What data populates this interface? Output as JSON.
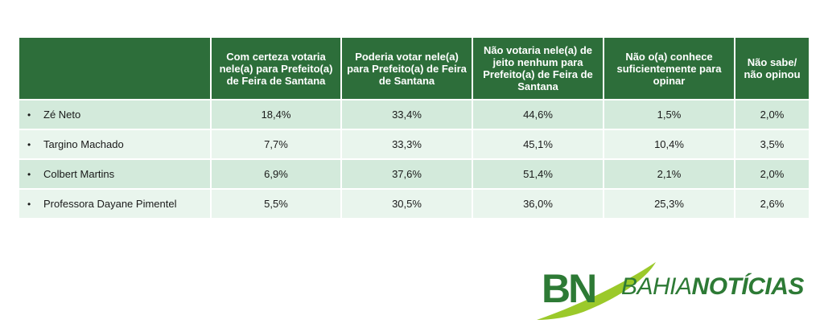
{
  "table": {
    "headers": [
      "",
      "Com certeza votaria nele(a) para Prefeito(a) de Feira de Santana",
      "Poderia votar nele(a) para Prefeito(a) de Feira de Santana",
      "Não votaria nele(a) de jeito nenhum para Prefeito(a) de Feira de Santana",
      "Não o(a) conhece suficientemente para opinar",
      "Não sabe/ não opinou"
    ],
    "rows": [
      {
        "name": "Zé Neto",
        "values": [
          "18,4%",
          "33,4%",
          "44,6%",
          "1,5%",
          "2,0%"
        ]
      },
      {
        "name": "Targino Machado",
        "values": [
          "7,7%",
          "33,3%",
          "45,1%",
          "10,4%",
          "3,5%"
        ]
      },
      {
        "name": "Colbert Martins",
        "values": [
          "6,9%",
          "37,6%",
          "51,4%",
          "2,1%",
          "2,0%"
        ]
      },
      {
        "name": "Professora Dayane Pimentel",
        "values": [
          "5,5%",
          "30,5%",
          "36,0%",
          "25,3%",
          "2,6%"
        ]
      }
    ],
    "bullet": "•"
  },
  "logo": {
    "mark": "BN",
    "text_part1": "BAHIA",
    "text_part2": "NOTÍCIAS",
    "colors": {
      "primary": "#2d7a35",
      "accent": "#9bc92a"
    }
  },
  "colors": {
    "header_bg": "#2d6e3a",
    "row_dark": "#d3eadb",
    "row_light": "#e9f5ed"
  }
}
